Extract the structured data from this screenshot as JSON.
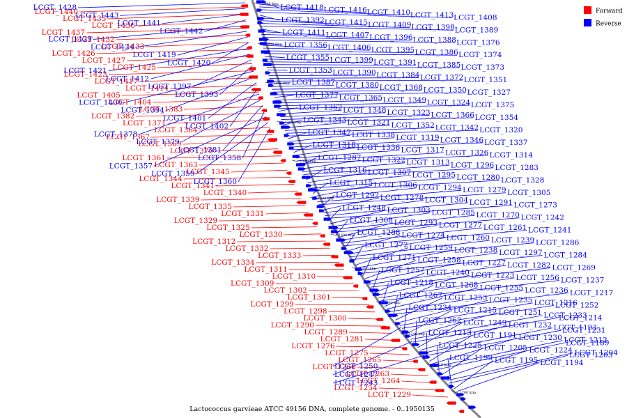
{
  "caption": "Lactococcus garvieae ATCC 49156 DNA, complete genome. - 0..1950135",
  "legend": [
    {
      "label": "Forward",
      "color": "#ff0000"
    },
    {
      "label": "Reverse",
      "color": "#0000ff"
    }
  ],
  "colors": {
    "forward": "#ff0000",
    "reverse": "#0000ff",
    "backbone": "#808080"
  },
  "ticks": [
    "1420 kbp",
    "1400 kbp",
    "1380 kbp",
    "1360 kbp",
    "1340 kbp",
    "1320 kbp",
    "1300 kbp",
    "1280 kbp",
    "1260 kbp",
    "1240 kbp",
    "1220 kbp",
    "1200 kbp"
  ],
  "forward_labels": [
    "LCGT_1440",
    "LCGT_1435",
    "LCGT_1436",
    "LCGT_1437",
    "LCGT_1432",
    "LCGT_1433",
    "LCGT_1426",
    "LCGT_1427",
    "LCGT_1425",
    "LCGT_1423",
    "LCGT_1417",
    "LCGT_1414",
    "LCGT_1405",
    "LCGT_1404",
    "LCGT_1383",
    "LCGT_1382",
    "LCGT_1371",
    "LCGT_1364",
    "LCGT_1367",
    "LCGT_1369",
    "LCGT_1370",
    "LCGT_1361",
    "LCGT_1363",
    "LCGT_1345",
    "LCGT_1344",
    "LCGT_1341",
    "LCGT_1340",
    "LCGT_1339",
    "LCGT_1335",
    "LCGT_1331",
    "LCGT_1329",
    "LCGT_1325",
    "LCGT_1330",
    "LCGT_1312",
    "LCGT_1332",
    "LCGT_1333",
    "LCGT_1334",
    "LCGT_1311",
    "LCGT_1310",
    "LCGT_1309",
    "LCGT_1302",
    "LCGT_1301",
    "LCGT_1299",
    "LCGT_1298",
    "LCGT_1300",
    "LCGT_1290",
    "LCGT_1289",
    "LCGT_1281",
    "LCGT_1276",
    "LCGT_1275",
    "LCGT_1265",
    "LCGT_1266",
    "LCGT_1263",
    "LCGT_1264",
    "LCGT_1254",
    "LCGT_1229"
  ],
  "reverse_labels": [
    "LCGT_1428",
    "LCGT_1443",
    "LCGT_1441",
    "LCGT_1442",
    "LCGT_1429",
    "LCGT_1424",
    "LCGT_1419",
    "LCGT_1420",
    "LCGT_1421",
    "LCGT_1412",
    "LCGT_1397",
    "LCGT_1393",
    "LCGT_1400",
    "LCGT_1394",
    "LCGT_1401",
    "LCGT_1402",
    "LCGT_1378",
    "LCGT_1379",
    "LCGT_1381",
    "LCGT_1358",
    "LCGT_1357",
    "LCGT_1359",
    "LCGT_1360",
    "LCGT_1418",
    "LCGT_1416",
    "LCGT_1410",
    "LCGT_1413",
    "LCGT_1408",
    "LCGT_1392",
    "LCGT_1415",
    "LCGT_1409",
    "LCGT_1398",
    "LCGT_1389",
    "LCGT_1411",
    "LCGT_1407",
    "LCGT_1396",
    "LCGT_1388",
    "LCGT_1376",
    "LCGT_1356",
    "LCGT_1406",
    "LCGT_1395",
    "LCGT_1386",
    "LCGT_1374",
    "LCGT_1355",
    "LCGT_1399",
    "LCGT_1391",
    "LCGT_1385",
    "LCGT_1373",
    "LCGT_1353",
    "LCGT_1390",
    "LCGT_1384",
    "LCGT_1372",
    "LCGT_1351",
    "LCGT_1387",
    "LCGT_1380",
    "LCGT_1368",
    "LCGT_1350",
    "LCGT_1327",
    "LCGT_1377",
    "LCGT_1365",
    "LCGT_1349",
    "LCGT_1324",
    "LCGT_1375",
    "LCGT_1362",
    "LCGT_1348",
    "LCGT_1323",
    "LCGT_1366",
    "LCGT_1354",
    "LCGT_1343",
    "LCGT_1321",
    "LCGT_1352",
    "LCGT_1342",
    "LCGT_1320",
    "LCGT_1347",
    "LCGT_1338",
    "LCGT_1319",
    "LCGT_1346",
    "LCGT_1337",
    "LCGT_1318",
    "LCGT_1336",
    "LCGT_1317",
    "LCGT_1326",
    "LCGT_1314",
    "LCGT_1287",
    "LCGT_1322",
    "LCGT_1313",
    "LCGT_1296",
    "LCGT_1283",
    "LCGT_1316",
    "LCGT_1307",
    "LCGT_1295",
    "LCGT_1280",
    "LCGT_1328",
    "LCGT_1315",
    "LCGT_1306",
    "LCGT_1294",
    "LCGT_1279",
    "LCGT_1305",
    "LCGT_1292",
    "LCGT_1278",
    "LCGT_1304",
    "LCGT_1291",
    "LCGT_1273",
    "LCGT_1248",
    "LCGT_1303",
    "LCGT_1285",
    "LCGT_1270",
    "LCGT_1242",
    "LCGT_1308",
    "LCGT_1293",
    "LCGT_1277",
    "LCGT_1261",
    "LCGT_1241",
    "LCGT_1288",
    "LCGT_1274",
    "LCGT_1260",
    "LCGT_1239",
    "LCGT_1286",
    "LCGT_1272",
    "LCGT_1259",
    "LCGT_1238",
    "LCGT_1297",
    "LCGT_1284",
    "LCGT_1271",
    "LCGT_1258",
    "LCGT_1227",
    "LCGT_1282",
    "LCGT_1269",
    "LCGT_1257",
    "LCGT_1240",
    "LCGT_1223",
    "LCGT_1256",
    "LCGT_1237",
    "LCGT_1218",
    "LCGT_1268",
    "LCGT_1255",
    "LCGT_1236",
    "LCGT_1217",
    "LCGT_1267",
    "LCGT_1253",
    "LCGT_1235",
    "LCGT_1216",
    "LCGT_1252",
    "LCGT_1234",
    "LCGT_1215",
    "LCGT_1251",
    "LCGT_1233",
    "LCGT_1214",
    "LCGT_1262",
    "LCGT_1249",
    "LCGT_1232",
    "LCGT_1193",
    "LCGT_1231",
    "LCGT_1213",
    "LCGT_1191",
    "LCGT_1230",
    "LCGT_1212",
    "LCGT_1189",
    "LCGT_1225",
    "LCGT_1205",
    "LCGT_1224",
    "LCGT_1204",
    "LCGT_1203",
    "LCGT_1199",
    "LCGT_1195",
    "LCGT_1194",
    "LCGT_1250",
    "LCGT_1247",
    "LCGT_1243"
  ]
}
